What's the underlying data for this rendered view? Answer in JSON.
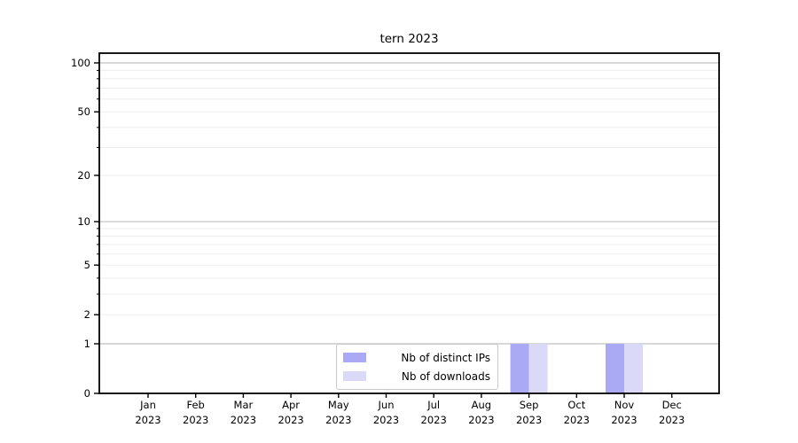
{
  "chart_data": {
    "type": "bar",
    "title": "tern 2023",
    "categories": [
      {
        "month": "Jan",
        "year": "2023"
      },
      {
        "month": "Feb",
        "year": "2023"
      },
      {
        "month": "Mar",
        "year": "2023"
      },
      {
        "month": "Apr",
        "year": "2023"
      },
      {
        "month": "May",
        "year": "2023"
      },
      {
        "month": "Jun",
        "year": "2023"
      },
      {
        "month": "Jul",
        "year": "2023"
      },
      {
        "month": "Aug",
        "year": "2023"
      },
      {
        "month": "Sep",
        "year": "2023"
      },
      {
        "month": "Oct",
        "year": "2023"
      },
      {
        "month": "Nov",
        "year": "2023"
      },
      {
        "month": "Dec",
        "year": "2023"
      }
    ],
    "series": [
      {
        "name": "Nb of distinct IPs",
        "color": "#a9a9f4",
        "values": [
          0,
          0,
          0,
          0,
          0,
          0,
          0,
          0,
          1,
          0,
          1,
          0
        ]
      },
      {
        "name": "Nb of downloads",
        "color": "#dadaf8",
        "values": [
          0,
          0,
          0,
          0,
          0,
          0,
          0,
          0,
          1,
          0,
          1,
          0
        ]
      }
    ],
    "xlabel": "",
    "ylabel": "",
    "y_axis": {
      "scale": "log1p",
      "tick_values": [
        0,
        1,
        2,
        5,
        10,
        20,
        50,
        100
      ],
      "major_grid_values": [
        1,
        10,
        100
      ],
      "minor_grid_values": [
        2,
        3,
        4,
        5,
        6,
        7,
        8,
        9,
        20,
        30,
        40,
        50,
        60,
        70,
        80,
        90
      ],
      "range_top": 115
    },
    "legend": {
      "position": "lower-center",
      "border": true
    },
    "grid": "horizontal-only",
    "colors": {
      "major_grid": "#c0c0c0",
      "minor_grid": "#ededed",
      "spine": "#000000",
      "legend_border": "#c9c9c9",
      "background": "#ffffff"
    }
  }
}
